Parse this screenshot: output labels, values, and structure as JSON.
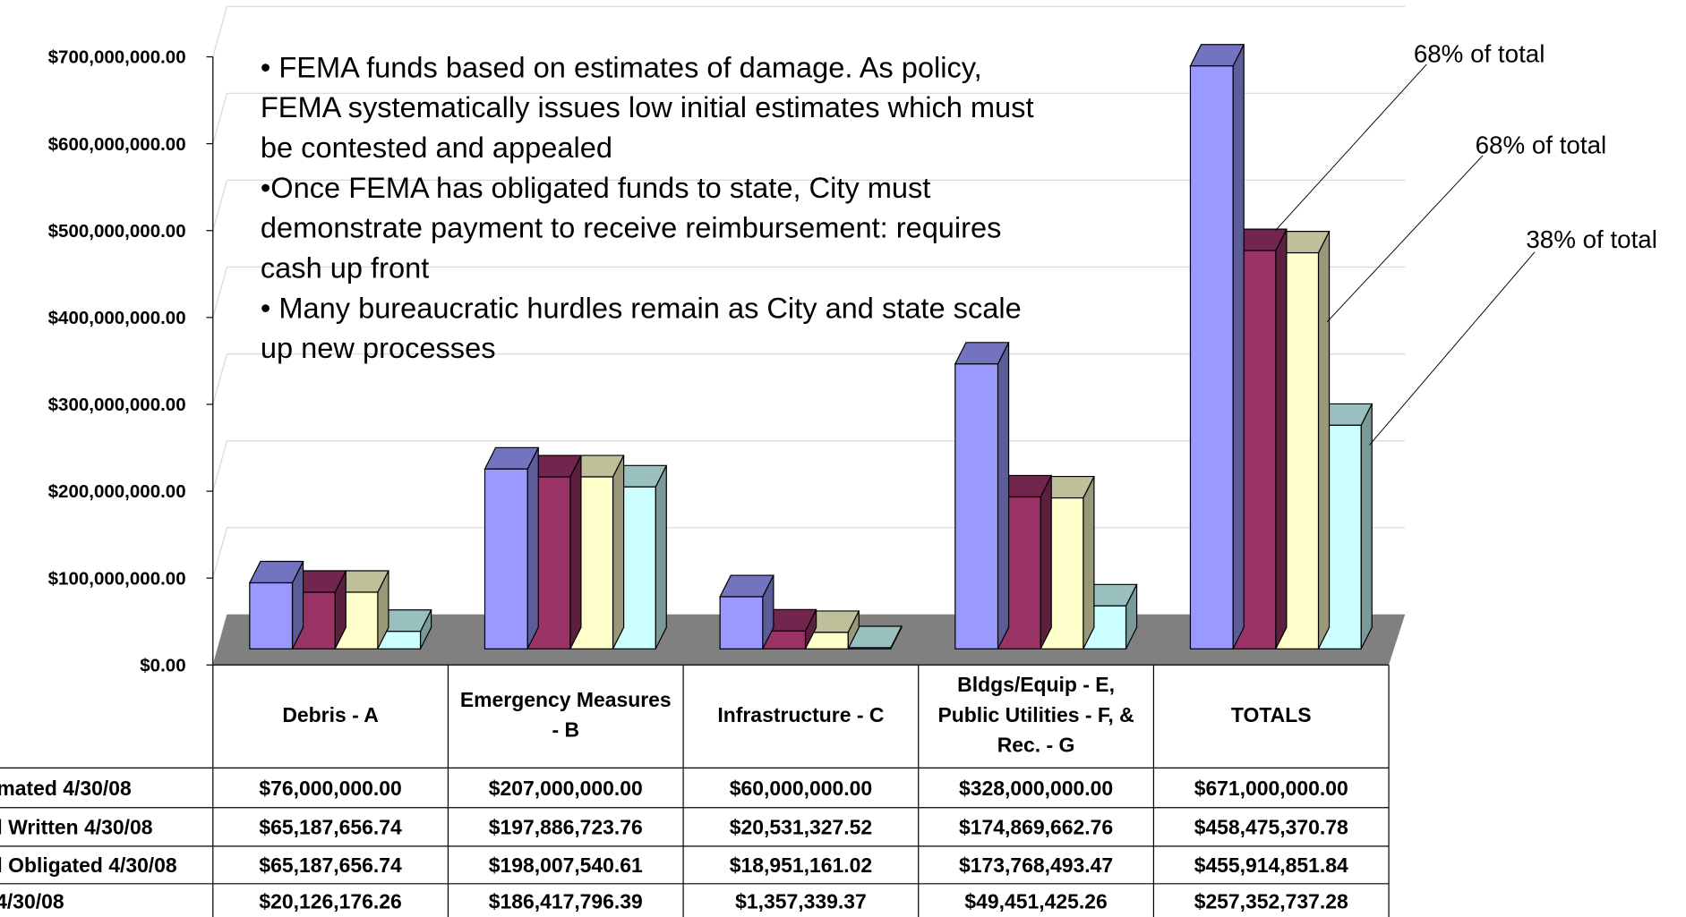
{
  "chart_data": {
    "type": "bar3d",
    "categories": [
      "Debris - A",
      "Emergency Measures - B",
      "Infrastructure - C",
      "Bldgs/Equip - E, Public Utilities - F, & Rec. - G",
      "TOTALS"
    ],
    "series": [
      {
        "name": "mated 4/30/08",
        "color": "#9999ff",
        "values": [
          76000000,
          207000000,
          60000000,
          328000000,
          671000000
        ],
        "value_labels": [
          "$76,000,000.00",
          "$207,000,000.00",
          "$60,000,000.00",
          "$328,000,000.00",
          "$671,000,000.00"
        ]
      },
      {
        "name": "l Written 4/30/08",
        "color": "#993366",
        "values": [
          65187656.74,
          197886723.76,
          20531327.52,
          174869662.76,
          458475370.78
        ],
        "value_labels": [
          "$65,187,656.74",
          "$197,886,723.76",
          "$20,531,327.52",
          "$174,869,662.76",
          "$458,475,370.78"
        ]
      },
      {
        "name": "l Obligated 4/30/08",
        "color": "#ffffcc",
        "values": [
          65187656.74,
          198007540.61,
          18951161.02,
          173768493.47,
          455914851.84
        ],
        "value_labels": [
          "$65,187,656.74",
          "$198,007,540.61",
          "$18,951,161.02",
          "$173,768,493.47",
          "$455,914,851.84"
        ]
      },
      {
        "name": "4/30/08",
        "color": "#ccffff",
        "values": [
          20126176.26,
          186417796.39,
          1357339.37,
          49451425.26,
          257352737.28
        ],
        "value_labels": [
          "$20,126,176.26",
          "$186,417,796.39",
          "$1,357,339.37",
          "$49,451,425.26",
          "$257,352,737.28"
        ]
      }
    ],
    "ylim": [
      0,
      700000000
    ],
    "yticks": [
      {
        "value": 0,
        "label": "$0.00"
      },
      {
        "value": 100000000,
        "label": "$100,000,000.00"
      },
      {
        "value": 200000000,
        "label": "$200,000,000.00"
      },
      {
        "value": 300000000,
        "label": "$300,000,000.00"
      },
      {
        "value": 400000000,
        "label": "$400,000,000.00"
      },
      {
        "value": 500000000,
        "label": "$500,000,000.00"
      },
      {
        "value": 600000000,
        "label": "$600,000,000.00"
      },
      {
        "value": 700000000,
        "label": "$700,000,000.00"
      }
    ],
    "grid": true,
    "floor_color": "#808080",
    "notes": [
      "• FEMA funds based on estimates of damage. As policy,",
      "FEMA systematically issues low initial estimates which must",
      "be contested and appealed",
      "•Once FEMA has obligated funds to state, City must",
      "demonstrate payment to receive reimbursement: requires",
      "cash up front",
      "• Many bureaucratic hurdles remain as City and state scale",
      "up new processes"
    ],
    "annotations": [
      "68% of total",
      "68% of total",
      "38% of total"
    ]
  }
}
